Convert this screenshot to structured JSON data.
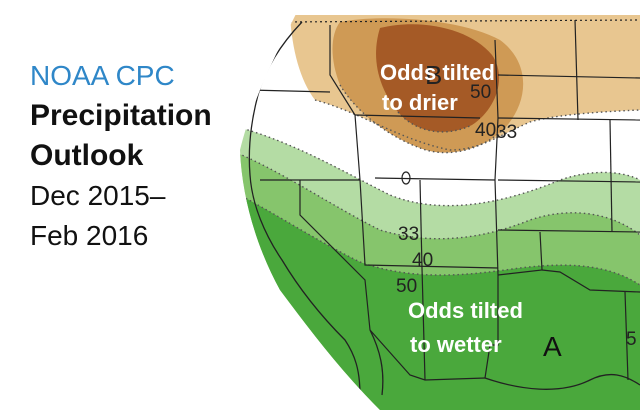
{
  "title": {
    "org": "NOAA CPC",
    "line1": "Precipitation",
    "line2": "Outlook",
    "date1": "Dec 2015–",
    "date2": "Feb 2016"
  },
  "map": {
    "callouts": {
      "drier": [
        "Odds tilted",
        "to drier"
      ],
      "wetter": [
        "Odds tilted",
        "to wetter"
      ]
    },
    "contour_labels": {
      "dry_50": "50",
      "dry_40": "40",
      "dry_33": "33",
      "wet_33": "33",
      "wet_40": "40",
      "wet_50": "50",
      "edge_5": "5"
    },
    "category_letters": {
      "below": "B",
      "above": "A"
    },
    "colors": {
      "dry_light": "#e8c690",
      "dry_mid": "#cf9a55",
      "dry_dark": "#a55a26",
      "wet_light": "#b4dca4",
      "wet_mid": "#86c56c",
      "wet_dark": "#4aa83c"
    }
  }
}
